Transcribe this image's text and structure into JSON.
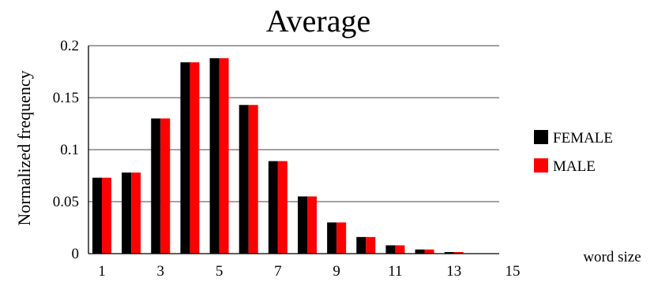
{
  "chart_data": {
    "type": "bar",
    "title": "Average",
    "xlabel": "word size",
    "ylabel": "Normalized frequency",
    "x": [
      1,
      2,
      3,
      4,
      5,
      6,
      7,
      8,
      9,
      10,
      11,
      12,
      13,
      14
    ],
    "x_tick_labels": [
      "1",
      "3",
      "5",
      "7",
      "9",
      "11",
      "13",
      "15"
    ],
    "y_tick_labels": [
      "0",
      "0.05",
      "0.1",
      "0.15",
      "0.2"
    ],
    "ylim": [
      0,
      0.2
    ],
    "grid": "horizontal",
    "legend_position": "right",
    "series": [
      {
        "name": "FEMALE",
        "color": "#000000",
        "values": [
          0.073,
          0.078,
          0.13,
          0.184,
          0.188,
          0.143,
          0.089,
          0.055,
          0.03,
          0.016,
          0.008,
          0.004,
          0.0015,
          0
        ]
      },
      {
        "name": "MALE",
        "color": "#ff0000",
        "values": [
          0.073,
          0.078,
          0.13,
          0.184,
          0.188,
          0.143,
          0.089,
          0.055,
          0.03,
          0.016,
          0.008,
          0.004,
          0.0015,
          0
        ]
      }
    ]
  }
}
